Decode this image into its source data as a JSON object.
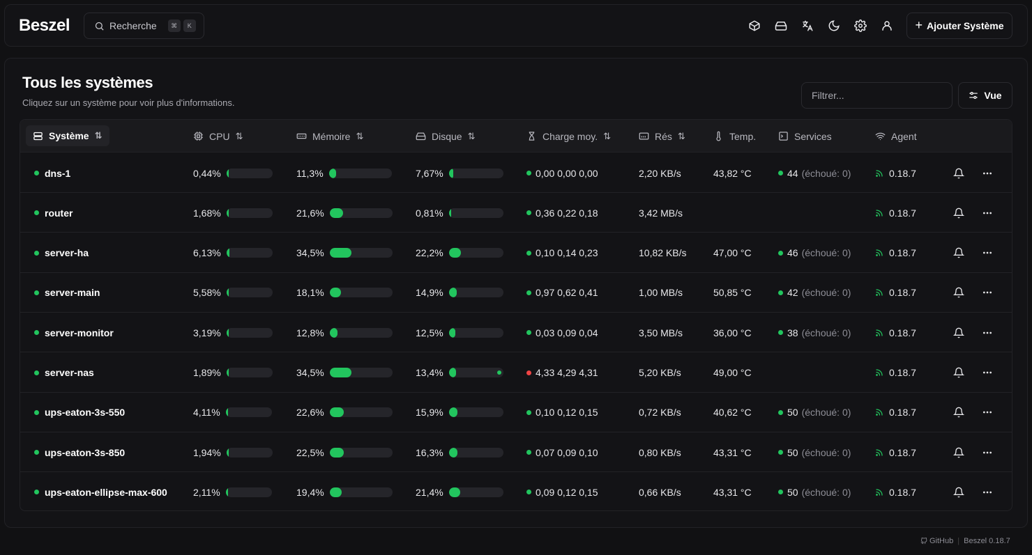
{
  "header": {
    "logo": "Beszel",
    "search_label": "Recherche",
    "search_keys": [
      "⌘",
      "K"
    ],
    "add_system_label": "Ajouter Système",
    "icons": [
      "box-icon",
      "hard-drive-icon",
      "translate-icon",
      "moon-icon",
      "gear-icon",
      "user-icon"
    ]
  },
  "page": {
    "title": "Tous les systèmes",
    "subtitle": "Cliquez sur un système pour voir plus d'informations.",
    "filter_placeholder": "Filtrer...",
    "view_label": "Vue"
  },
  "columns": {
    "system": "Système",
    "cpu": "CPU",
    "memory": "Mémoire",
    "disk": "Disque",
    "load": "Charge moy.",
    "net": "Rés",
    "temp": "Temp.",
    "services": "Services",
    "agent": "Agent"
  },
  "systems": [
    {
      "name": "dns-1",
      "cpu": "0,44%",
      "cpu_pct": 0.44,
      "mem": "11,3%",
      "mem_pct": 11.3,
      "disk": "7,67%",
      "disk_pct": 7.67,
      "load_status": "green",
      "load": "0,00 0,00 0,00",
      "net": "2,20 KB/s",
      "temp": "43,82 °C",
      "services": "44",
      "services_failed": "(échoué: 0)",
      "agent": "0.18.7"
    },
    {
      "name": "router",
      "cpu": "1,68%",
      "cpu_pct": 1.68,
      "mem": "21,6%",
      "mem_pct": 21.6,
      "disk": "0,81%",
      "disk_pct": 0.81,
      "load_status": "green",
      "load": "0,36 0,22 0,18",
      "net": "3,42 MB/s",
      "temp": "",
      "services": "",
      "services_failed": "",
      "agent": "0.18.7"
    },
    {
      "name": "server-ha",
      "cpu": "6,13%",
      "cpu_pct": 6.13,
      "mem": "34,5%",
      "mem_pct": 34.5,
      "disk": "22,2%",
      "disk_pct": 22.2,
      "load_status": "green",
      "load": "0,10 0,14 0,23",
      "net": "10,82 KB/s",
      "temp": "47,00 °C",
      "services": "46",
      "services_failed": "(échoué: 0)",
      "agent": "0.18.7"
    },
    {
      "name": "server-main",
      "cpu": "5,58%",
      "cpu_pct": 5.58,
      "mem": "18,1%",
      "mem_pct": 18.1,
      "disk": "14,9%",
      "disk_pct": 14.9,
      "load_status": "green",
      "load": "0,97 0,62 0,41",
      "net": "1,00 MB/s",
      "temp": "50,85 °C",
      "services": "42",
      "services_failed": "(échoué: 0)",
      "agent": "0.18.7"
    },
    {
      "name": "server-monitor",
      "cpu": "3,19%",
      "cpu_pct": 3.19,
      "mem": "12,8%",
      "mem_pct": 12.8,
      "disk": "12,5%",
      "disk_pct": 12.5,
      "load_status": "green",
      "load": "0,03 0,09 0,04",
      "net": "3,50 MB/s",
      "temp": "36,00 °C",
      "services": "38",
      "services_failed": "(échoué: 0)",
      "agent": "0.18.7"
    },
    {
      "name": "server-nas",
      "cpu": "1,89%",
      "cpu_pct": 1.89,
      "mem": "34,5%",
      "mem_pct": 34.5,
      "disk": "13,4%",
      "disk_pct": 13.4,
      "disk_extra": true,
      "load_status": "red",
      "load": "4,33 4,29 4,31",
      "net": "5,20 KB/s",
      "temp": "49,00 °C",
      "services": "",
      "services_failed": "",
      "agent": "0.18.7"
    },
    {
      "name": "ups-eaton-3s-550",
      "cpu": "4,11%",
      "cpu_pct": 4.11,
      "mem": "22,6%",
      "mem_pct": 22.6,
      "disk": "15,9%",
      "disk_pct": 15.9,
      "load_status": "green",
      "load": "0,10 0,12 0,15",
      "net": "0,72 KB/s",
      "temp": "40,62 °C",
      "services": "50",
      "services_failed": "(échoué: 0)",
      "agent": "0.18.7"
    },
    {
      "name": "ups-eaton-3s-850",
      "cpu": "1,94%",
      "cpu_pct": 1.94,
      "mem": "22,5%",
      "mem_pct": 22.5,
      "disk": "16,3%",
      "disk_pct": 16.3,
      "load_status": "green",
      "load": "0,07 0,09 0,10",
      "net": "0,80 KB/s",
      "temp": "43,31 °C",
      "services": "50",
      "services_failed": "(échoué: 0)",
      "agent": "0.18.7"
    },
    {
      "name": "ups-eaton-ellipse-max-600",
      "cpu": "2,11%",
      "cpu_pct": 2.11,
      "mem": "19,4%",
      "mem_pct": 19.4,
      "disk": "21,4%",
      "disk_pct": 21.4,
      "load_status": "green",
      "load": "0,09 0,12 0,15",
      "net": "0,66 KB/s",
      "temp": "43,31 °C",
      "services": "50",
      "services_failed": "(échoué: 0)",
      "agent": "0.18.7"
    }
  ],
  "footer": {
    "github": "GitHub",
    "version": "Beszel 0.18.7"
  },
  "colors": {
    "accent_green": "#22c55e",
    "status_red": "#ef4444",
    "background": "#111113"
  }
}
